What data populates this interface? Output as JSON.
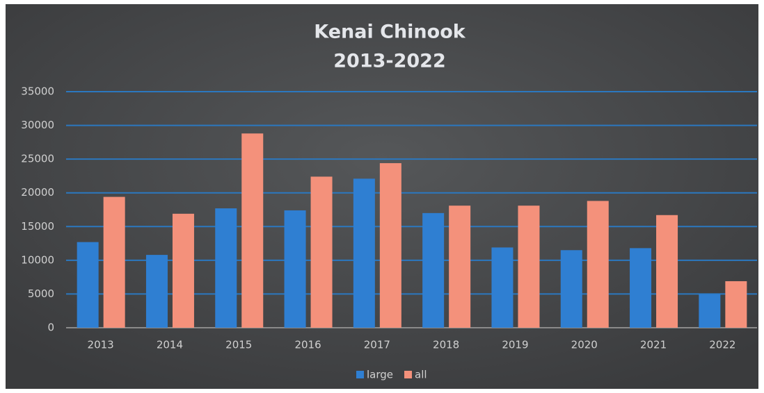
{
  "chart_data": {
    "type": "bar",
    "title": "Kenai Chinook",
    "subtitle": "2013-2022",
    "categories": [
      "2013",
      "2014",
      "2015",
      "2016",
      "2017",
      "2018",
      "2019",
      "2020",
      "2021",
      "2022"
    ],
    "series": [
      {
        "name": "large",
        "color": "#2f7fd2",
        "values": [
          12700,
          10800,
          17700,
          17400,
          22100,
          17000,
          11900,
          11500,
          11800,
          5000
        ]
      },
      {
        "name": "all",
        "color": "#f4917b",
        "values": [
          19400,
          16900,
          28800,
          22400,
          24400,
          18100,
          18100,
          18800,
          16700,
          6900
        ]
      }
    ],
    "ylim": [
      0,
      35000
    ],
    "yticks": [
      0,
      5000,
      10000,
      15000,
      20000,
      25000,
      30000,
      35000
    ],
    "grid": true,
    "legend": "bottom"
  }
}
